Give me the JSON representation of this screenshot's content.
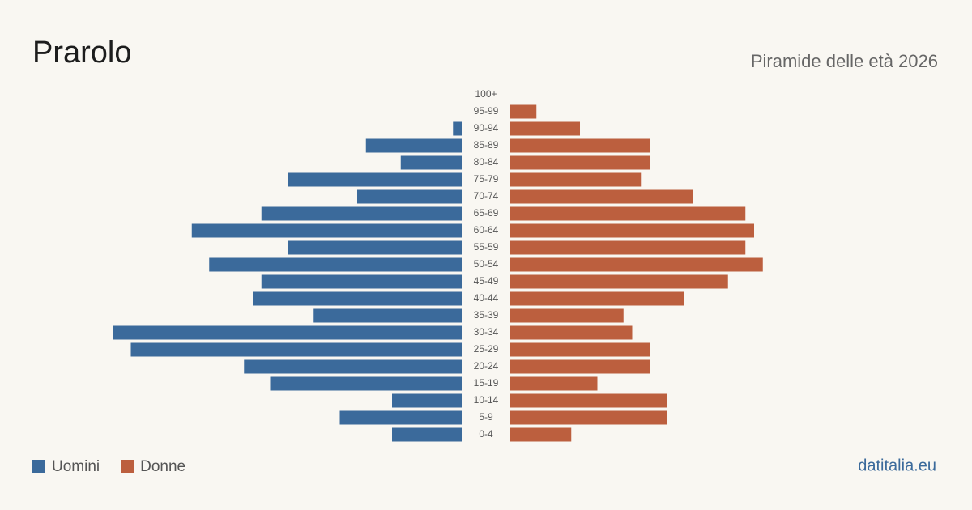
{
  "chart_data": {
    "type": "pyramid",
    "title": "Prarolo",
    "subtitle": "Piramide delle età 2026",
    "source": "datitalia.eu",
    "categories": [
      "100+",
      "95-99",
      "90-94",
      "85-89",
      "80-84",
      "75-79",
      "70-74",
      "65-69",
      "60-64",
      "55-59",
      "50-54",
      "45-49",
      "40-44",
      "35-39",
      "30-34",
      "25-29",
      "20-24",
      "15-19",
      "10-14",
      "5-9",
      "0-4"
    ],
    "series": [
      {
        "name": "Uomini",
        "color": "#3b6a9b",
        "values": [
          0,
          0,
          1,
          11,
          7,
          20,
          12,
          23,
          31,
          20,
          29,
          23,
          24,
          17,
          40,
          38,
          25,
          22,
          8,
          14,
          8
        ]
      },
      {
        "name": "Donne",
        "color": "#bc5f3e",
        "values": [
          0,
          3,
          8,
          16,
          16,
          15,
          21,
          27,
          28,
          27,
          29,
          25,
          20,
          13,
          14,
          16,
          16,
          10,
          18,
          18,
          7
        ]
      }
    ]
  }
}
